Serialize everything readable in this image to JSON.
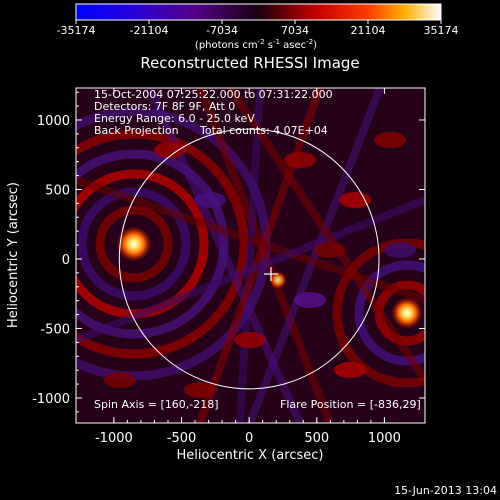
{
  "colorbar": {
    "ticks": [
      "-35174",
      "-21104",
      "-7034",
      "7034",
      "21104",
      "35174"
    ],
    "units_main": "(photons cm",
    "units_exp1": "-2",
    "units_mid": " s",
    "units_exp2": "-1",
    "units_tail": " asec",
    "units_exp3": "-2",
    "units_close": ")",
    "stops": [
      {
        "offset": 0.0,
        "color": "#0000ff"
      },
      {
        "offset": 0.14,
        "color": "#2200e0"
      },
      {
        "offset": 0.32,
        "color": "#55008a"
      },
      {
        "offset": 0.5,
        "color": "#1a0010"
      },
      {
        "offset": 0.66,
        "color": "#c80000"
      },
      {
        "offset": 0.8,
        "color": "#ff3a00"
      },
      {
        "offset": 0.9,
        "color": "#ffb000"
      },
      {
        "offset": 1.0,
        "color": "#ffffff"
      }
    ]
  },
  "plot": {
    "title": "Reconstructed RHESSI Image",
    "xlabel": "Heliocentric X (arcsec)",
    "ylabel": "Heliocentric Y (arcsec)",
    "xticks": [
      "-1000",
      "-500",
      "0",
      "500",
      "1000"
    ],
    "yticks": [
      "1000",
      "500",
      "0",
      "-500",
      "-1000"
    ],
    "xlim": [
      -1280,
      1300
    ],
    "ylim": [
      -1180,
      1230
    ],
    "sun_radius_arcsec": 960,
    "sun_center": [
      0,
      0
    ],
    "limb_color": "#ffffff",
    "crosshair_color": "#ffffff"
  },
  "annotations": {
    "time_range": "15-Oct-2004 07:25:22.000 to 07:31:22.000",
    "detectors": "Detectors: 7F 8F 9F, Att 0",
    "energy": "Energy Range: 6.0 - 25.0 keV",
    "method": "Back Projection",
    "counts": "Total counts: 4.07E+04",
    "spin_axis": "Spin Axis = [160,-218]",
    "flare_position": "Flare Position = [-836,29]"
  },
  "footer": {
    "timestamp": "15-Jun-2013 13:04"
  }
}
